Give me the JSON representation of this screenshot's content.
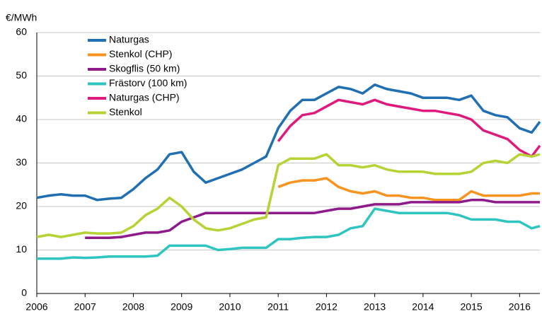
{
  "chart_data": {
    "type": "line",
    "ylabel": "€/MWh",
    "x": [
      2006,
      2006.25,
      2006.5,
      2006.75,
      2007,
      2007.25,
      2007.5,
      2007.75,
      2008,
      2008.25,
      2008.5,
      2008.75,
      2009,
      2009.25,
      2009.5,
      2009.75,
      2010,
      2010.25,
      2010.5,
      2010.75,
      2011,
      2011.25,
      2011.5,
      2011.75,
      2012,
      2012.25,
      2012.5,
      2012.75,
      2013,
      2013.25,
      2013.5,
      2013.75,
      2014,
      2014.25,
      2014.5,
      2014.75,
      2015,
      2015.25,
      2015.5,
      2015.75,
      2016,
      2016.25,
      2016.42
    ],
    "series": [
      {
        "name": "Naturgas",
        "color": "#1f6fb2",
        "values": [
          22,
          22.5,
          22.8,
          22.5,
          22.5,
          21.5,
          21.8,
          22,
          24,
          26.5,
          28.5,
          32,
          32.5,
          28,
          25.5,
          26.5,
          27.5,
          28.5,
          30,
          31.5,
          38,
          42,
          44.5,
          44.5,
          46,
          47.5,
          47,
          46,
          48,
          47,
          46.5,
          46,
          45,
          45,
          45,
          44.5,
          45.5,
          42,
          41,
          40.5,
          38,
          37,
          39.5
        ]
      },
      {
        "name": "Stenkol (CHP)",
        "color": "#f7931e",
        "values": [
          null,
          null,
          null,
          null,
          null,
          null,
          null,
          null,
          null,
          null,
          null,
          null,
          null,
          null,
          null,
          null,
          null,
          null,
          null,
          null,
          24.5,
          25.5,
          26,
          26,
          26.5,
          24.5,
          23.5,
          23,
          23.5,
          22.5,
          22.5,
          22,
          22,
          21.5,
          21.5,
          21.5,
          23.5,
          22.5,
          22.5,
          22.5,
          22.5,
          23,
          23
        ]
      },
      {
        "name": "Skogflis (50 km)",
        "color": "#8e1a8c",
        "values": [
          null,
          null,
          null,
          null,
          12.8,
          12.8,
          12.8,
          13,
          13.5,
          14,
          14,
          14.5,
          16.5,
          17.5,
          18.5,
          18.5,
          18.5,
          18.5,
          18.5,
          18.5,
          18.5,
          18.5,
          18.5,
          18.5,
          19,
          19.5,
          19.5,
          20,
          20.5,
          20.5,
          20.5,
          21,
          21,
          21,
          21,
          21,
          21.5,
          21.5,
          21,
          21,
          21,
          21,
          21
        ]
      },
      {
        "name": "Frästorv (100 km)",
        "color": "#2ec4c0",
        "values": [
          8,
          8,
          8,
          8.3,
          8.2,
          8.3,
          8.5,
          8.5,
          8.5,
          8.5,
          8.7,
          11,
          11,
          11,
          11,
          10,
          10.2,
          10.5,
          10.5,
          10.5,
          12.5,
          12.5,
          12.8,
          13,
          13,
          13.5,
          15,
          15.5,
          19.5,
          19,
          18.5,
          18.5,
          18.5,
          18.5,
          18.5,
          18,
          17,
          17,
          17,
          16.5,
          16.5,
          15,
          15.5
        ]
      },
      {
        "name": "Naturgas (CHP)",
        "color": "#e0197d",
        "values": [
          null,
          null,
          null,
          null,
          null,
          null,
          null,
          null,
          null,
          null,
          null,
          null,
          null,
          null,
          null,
          null,
          null,
          null,
          null,
          null,
          35,
          38.5,
          41,
          41.5,
          43,
          44.5,
          44,
          43.5,
          44.5,
          43.5,
          43,
          42.5,
          42,
          42,
          41.5,
          41,
          40,
          37.5,
          36.5,
          35.5,
          33,
          31.5,
          34
        ]
      },
      {
        "name": "Stenkol",
        "color": "#b5d334",
        "values": [
          13,
          13.5,
          13,
          13.5,
          14,
          13.8,
          13.8,
          14,
          15.5,
          18,
          19.5,
          22,
          20,
          17,
          15,
          14.5,
          15,
          16,
          17,
          17.5,
          29.5,
          31,
          31,
          31,
          32,
          29.5,
          29.5,
          29,
          29.5,
          28.5,
          28,
          28,
          28,
          27.5,
          27.5,
          27.5,
          28,
          30,
          30.5,
          30,
          32,
          31.5,
          32
        ]
      }
    ],
    "xlim": [
      2006,
      2016.42
    ],
    "xticks": [
      2006,
      2007,
      2008,
      2009,
      2010,
      2011,
      2012,
      2013,
      2014,
      2015,
      2016
    ],
    "ylim": [
      0,
      60
    ],
    "yticks": [
      0,
      10,
      20,
      30,
      40,
      50,
      60
    ],
    "grid": true,
    "legend": "upper left"
  }
}
